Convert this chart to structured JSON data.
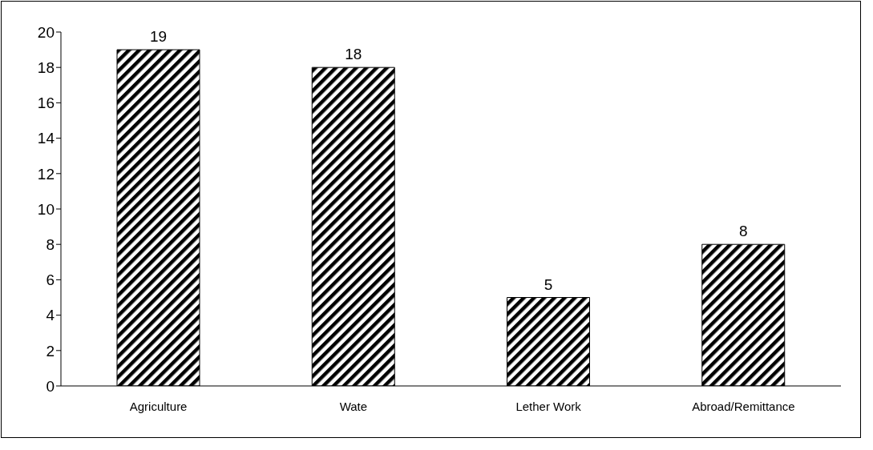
{
  "chart_data": {
    "type": "bar",
    "categories": [
      "Agriculture",
      "Wate",
      "Lether Work",
      "Abroad/Remittance"
    ],
    "values": [
      19,
      18,
      5,
      8
    ],
    "color": "#000000",
    "ylim": [
      0,
      20
    ],
    "yticks": [
      0,
      2,
      4,
      6,
      8,
      10,
      12,
      14,
      16,
      18,
      20
    ],
    "grid": false,
    "data_labels": true
  }
}
